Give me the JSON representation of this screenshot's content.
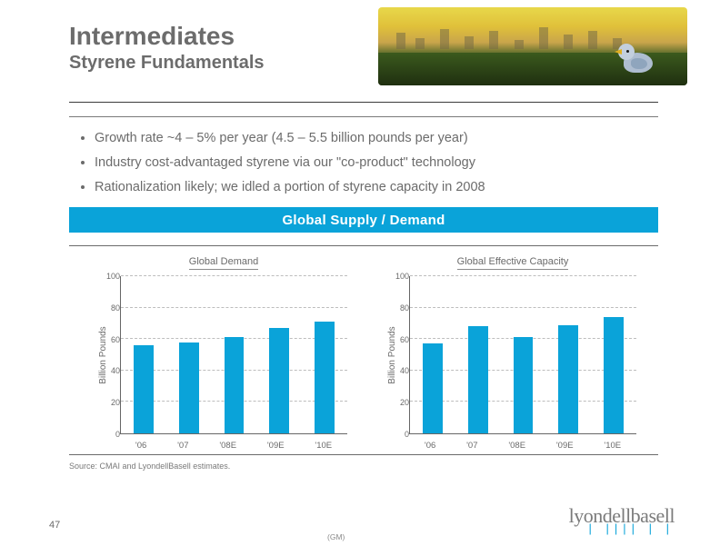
{
  "header": {
    "title": "Intermediates",
    "subtitle": "Styrene Fundamentals",
    "hero_alt": "industrial-sunset-grass-robin"
  },
  "bullets": [
    "Growth rate ~4 – 5% per year (4.5 – 5.5 billion pounds per year)",
    "Industry cost-advantaged styrene via our \"co-product\" technology",
    "Rationalization likely; we idled a portion of styrene capacity in 2008"
  ],
  "blue_bar_label": "Global Supply / Demand",
  "chart_left": {
    "type": "bar",
    "title": "Global Demand",
    "ylabel": "Billion Pounds",
    "categories": [
      "'06",
      "'07",
      "'08E",
      "'09E",
      "'10E"
    ],
    "values": [
      56,
      58,
      61,
      67,
      71
    ],
    "bar_colors": [
      "#0aa3d9",
      "#0aa3d9",
      "#0aa3d9",
      "#0aa3d9",
      "#0aa3d9"
    ],
    "ylim": [
      0,
      100
    ],
    "yticks": [
      0,
      20,
      40,
      60,
      80,
      100
    ],
    "background_color": "#ffffff",
    "grid_color": "#bdbdbd",
    "axis_color": "#666666",
    "bar_width": 0.72,
    "title_fontsize": 11,
    "label_fontsize": 10
  },
  "chart_right": {
    "type": "bar",
    "title": "Global Effective Capacity",
    "ylabel": "Billion Pounds",
    "categories": [
      "'06",
      "'07",
      "'08E",
      "'09E",
      "'10E"
    ],
    "values": [
      57,
      68,
      61,
      69,
      74
    ],
    "bar_colors": [
      "#0aa3d9",
      "#0aa3d9",
      "#0aa3d9",
      "#0aa3d9",
      "#0aa3d9"
    ],
    "ylim": [
      0,
      100
    ],
    "yticks": [
      0,
      20,
      40,
      60,
      80,
      100
    ],
    "background_color": "#ffffff",
    "grid_color": "#bdbdbd",
    "axis_color": "#666666",
    "bar_width": 0.72,
    "title_fontsize": 11,
    "label_fontsize": 10
  },
  "source_note": "Source: CMAI and LyondellBasell estimates.",
  "footer": {
    "logo_text": "lyondellbasell",
    "page_number": "47",
    "gm_code": "(GM)"
  }
}
